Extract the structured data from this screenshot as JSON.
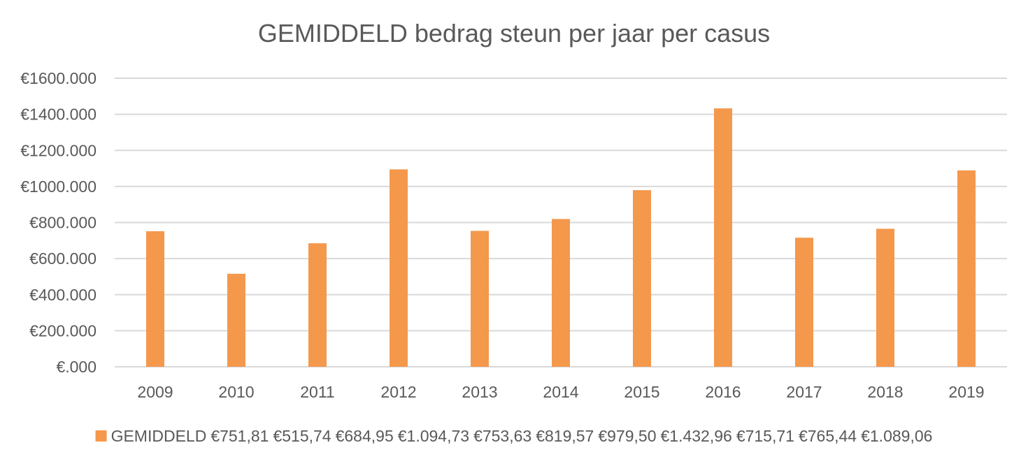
{
  "chart_data": {
    "type": "bar",
    "title": "GEMIDDELD bedrag steun per jaar per casus",
    "xlabel": "",
    "ylabel": "",
    "categories": [
      "2009",
      "2010",
      "2011",
      "2012",
      "2013",
      "2014",
      "2015",
      "2016",
      "2017",
      "2018",
      "2019"
    ],
    "series": [
      {
        "name": "GEMIDDELD",
        "values": [
          751.81,
          515.74,
          684.95,
          1094.73,
          753.63,
          819.57,
          979.5,
          1432.96,
          715.71,
          765.44,
          1089.06
        ],
        "value_labels": [
          "€751,81",
          "€515,74",
          "€684,95",
          "€1.094,73",
          "€753,63",
          "€819,57",
          "€979,50",
          "€1.432,96",
          "€715,71",
          "€765,44",
          "€1.089,06"
        ]
      }
    ],
    "ylim": [
      0,
      1600
    ],
    "yticks": [
      0,
      200,
      400,
      600,
      800,
      1000,
      1200,
      1400,
      1600
    ],
    "ytick_labels": [
      "€.000",
      "€200.000",
      "€400.000",
      "€600.000",
      "€800.000",
      "€1000.000",
      "€1200.000",
      "€1400.000",
      "€1600.000"
    ],
    "grid": true,
    "legend_position": "bottom",
    "legend_style": "data table row",
    "colors": {
      "bar": "#f4984c",
      "grid": "#d9d9d9",
      "text": "#595959"
    }
  }
}
